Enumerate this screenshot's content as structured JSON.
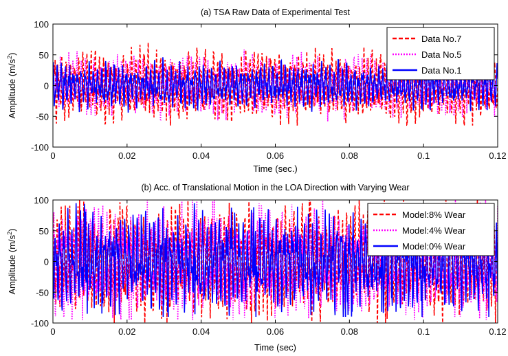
{
  "chart_data": [
    {
      "type": "line",
      "title": "(a) TSA Raw Data of Experimental Test",
      "xlabel": "Time  (sec.)",
      "ylabel": "Amplitude (m/s",
      "ylabel_sup": "2",
      "ylabel_end": ")",
      "xlim": [
        0,
        0.12
      ],
      "ylim": [
        -100,
        100
      ],
      "xticks": [
        0,
        0.02,
        0.04,
        0.06,
        0.08,
        0.1,
        0.12
      ],
      "xtick_labels": [
        "0",
        "0.02",
        "0.04",
        "0.06",
        "0.08",
        "0.1",
        "0.12"
      ],
      "yticks": [
        -100,
        -50,
        0,
        50,
        100
      ],
      "ytick_labels": [
        "-100",
        "-50",
        "0",
        "50",
        "100"
      ],
      "grid": false,
      "legend_position": "top-right",
      "series": [
        {
          "name": "Data No.7",
          "color": "#ff0000",
          "style": "dashed",
          "approx_peak": 65,
          "approx_range": [
            -65,
            65
          ],
          "seed": 7
        },
        {
          "name": "Data No.5",
          "color": "#ff00ff",
          "style": "dotted",
          "approx_peak": 55,
          "approx_range": [
            -65,
            60
          ],
          "seed": 5
        },
        {
          "name": "Data No.1",
          "color": "#0000ff",
          "style": "solid",
          "approx_peak": 42,
          "approx_range": [
            -65,
            45
          ],
          "seed": 1
        }
      ]
    },
    {
      "type": "line",
      "title": "(b) Acc. of Translational Motion in the LOA Direction with Varying Wear",
      "xlabel": "Time (sec)",
      "ylabel": "Amplitude (m/s",
      "ylabel_sup": "2",
      "ylabel_end": ")",
      "xlim": [
        0,
        0.12
      ],
      "ylim": [
        -100,
        100
      ],
      "xticks": [
        0,
        0.02,
        0.04,
        0.06,
        0.08,
        0.1,
        0.12
      ],
      "xtick_labels": [
        "0",
        "0.02",
        "0.04",
        "0.06",
        "0.08",
        "0.1",
        "0.12"
      ],
      "yticks": [
        -100,
        -50,
        0,
        50,
        100
      ],
      "ytick_labels": [
        "-100",
        "-50",
        "0",
        "50",
        "100"
      ],
      "grid": false,
      "legend_position": "top-right",
      "series": [
        {
          "name": "Model:8% Wear",
          "color": "#ff0000",
          "style": "dashed",
          "approx_peak": 100,
          "approx_range": [
            -100,
            100
          ],
          "seed": 8
        },
        {
          "name": "Model:4% Wear",
          "color": "#ff00ff",
          "style": "dotted",
          "approx_peak": 95,
          "approx_range": [
            -95,
            95
          ],
          "seed": 4
        },
        {
          "name": "Model:0% Wear",
          "color": "#0000ff",
          "style": "solid",
          "approx_peak": 90,
          "approx_range": [
            -90,
            90
          ],
          "seed": 2
        }
      ]
    }
  ]
}
